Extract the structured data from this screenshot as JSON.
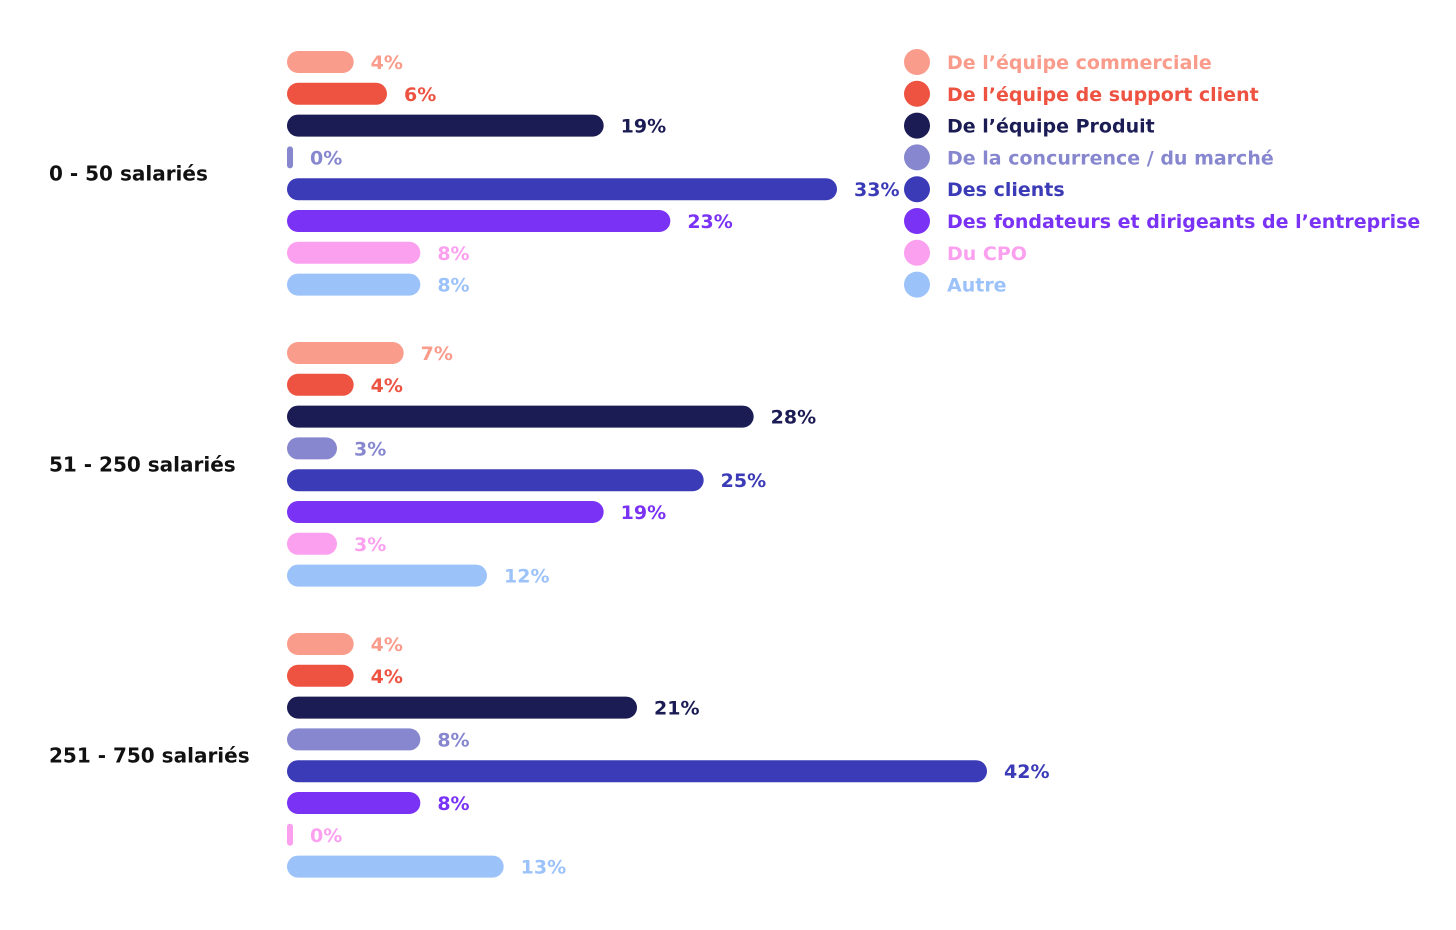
{
  "chart_data": {
    "type": "bar",
    "orientation": "horizontal",
    "grouped": true,
    "legend_position": "top-right",
    "grid": false,
    "xlim": [
      0,
      42
    ],
    "unit": "%",
    "categories": [
      "0 - 50 salariés",
      "51 - 250 salariés",
      "251 - 750 salariés"
    ],
    "series": [
      {
        "name": "De l’équipe commerciale",
        "color": "#FA9C8C",
        "values": [
          4,
          7,
          4
        ]
      },
      {
        "name": "De l’équipe de support client",
        "color": "#EE5342",
        "values": [
          6,
          4,
          4
        ]
      },
      {
        "name": "De l’équipe Produit",
        "color": "#1C1C55",
        "values": [
          19,
          28,
          21
        ]
      },
      {
        "name": "De la concurrence / du marché",
        "color": "#8787CF",
        "values": [
          0,
          3,
          8
        ]
      },
      {
        "name": "Des clients",
        "color": "#3B3BB7",
        "values": [
          33,
          25,
          42
        ]
      },
      {
        "name": "Des fondateurs et dirigeants de l’entreprise",
        "color": "#7A33F5",
        "values": [
          23,
          19,
          8
        ]
      },
      {
        "name": "Du CPO",
        "color": "#FBA0EF",
        "values": [
          8,
          3,
          0
        ]
      },
      {
        "name": "Autre",
        "color": "#9CC2FA",
        "values": [
          8,
          12,
          13
        ]
      }
    ]
  }
}
